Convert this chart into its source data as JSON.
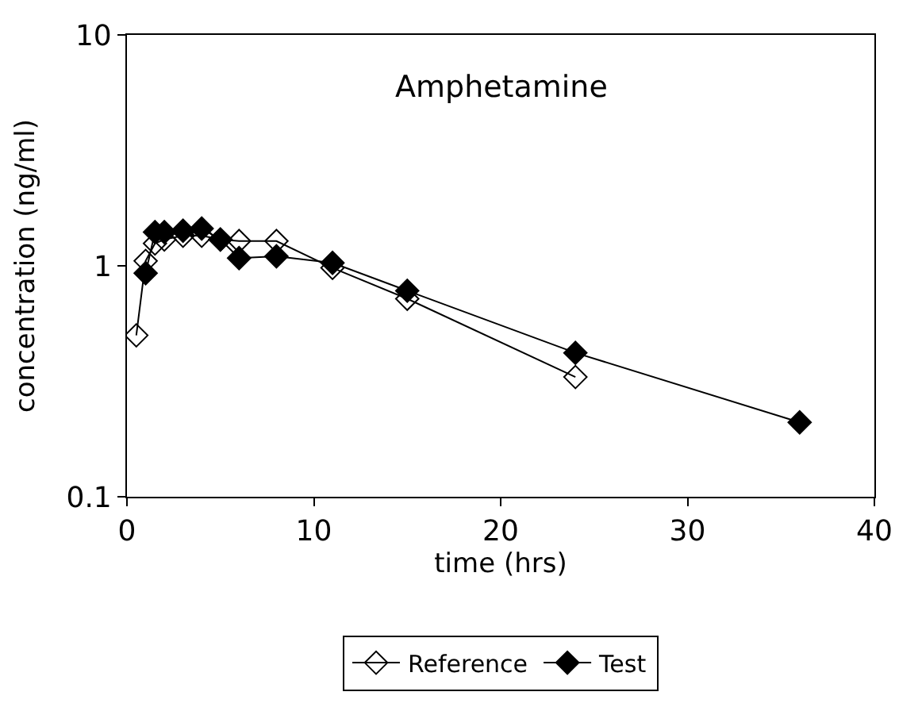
{
  "chart_data": {
    "type": "line",
    "title": "Amphetamine",
    "xlabel": "time (hrs)",
    "ylabel": "concentration (ng/ml)",
    "log": "y",
    "xlim": [
      0,
      40
    ],
    "xticks": [
      0,
      10,
      20,
      30,
      40
    ],
    "ylim": [
      0.1,
      10
    ],
    "yticks": [
      0.1,
      1,
      10
    ],
    "legend": "bottom",
    "marker": "diamond",
    "series": [
      {
        "name": "Reference",
        "color": "#000000",
        "x": [
          0.5,
          1,
          1.5,
          2,
          3,
          4,
          5,
          6,
          8,
          11,
          15,
          24
        ],
        "values": [
          0.5,
          1.05,
          1.25,
          1.3,
          1.35,
          1.35,
          1.3,
          1.28,
          1.28,
          0.98,
          0.72,
          0.33
        ]
      },
      {
        "name": "Test",
        "color": "#000000",
        "x": [
          1,
          1.5,
          2,
          3,
          4,
          5,
          6,
          8,
          11,
          15,
          24,
          36
        ],
        "values": [
          0.93,
          1.4,
          1.4,
          1.42,
          1.45,
          1.3,
          1.08,
          1.1,
          1.03,
          0.78,
          0.42,
          0.21
        ]
      }
    ]
  }
}
